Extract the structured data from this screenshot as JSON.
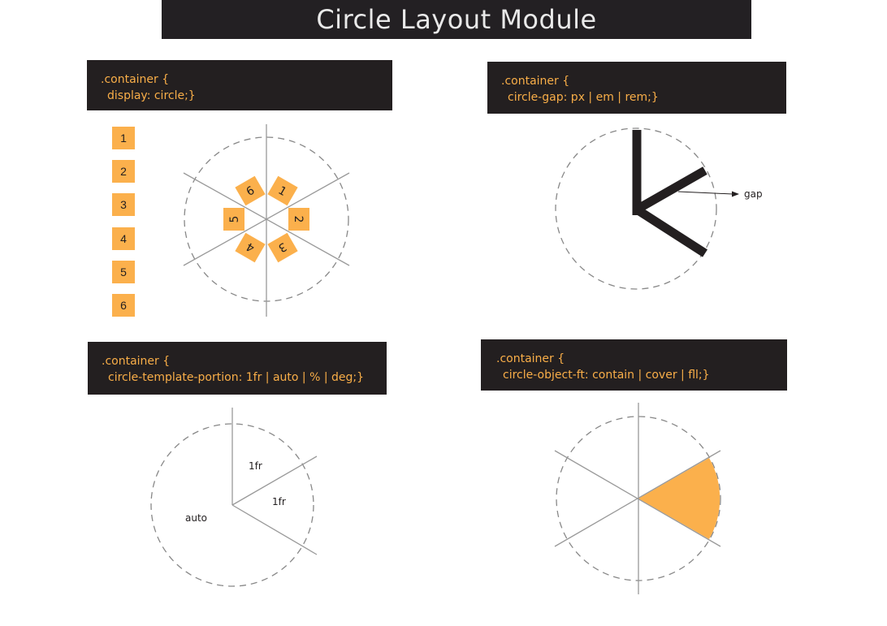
{
  "title": "Circle Layout Module",
  "colors": {
    "accent": "#fbb04c",
    "dark": "#231f20",
    "title_bg": "#232023",
    "code_text": "#f9ae48"
  },
  "panels": [
    {
      "line1": ".container {",
      "line2": "display: circle;}"
    },
    {
      "line1": ".container {",
      "line2": "circle-gap: px | em | rem;}"
    },
    {
      "line1": ".container {",
      "line2": "circle-template-portion: 1fr | auto | % | deg;}"
    },
    {
      "line1": ".container {",
      "line2": "circle-object-ft: contain | cover | fll;}"
    }
  ],
  "items": [
    "1",
    "2",
    "3",
    "4",
    "5",
    "6"
  ],
  "gap_label": "gap",
  "portions": {
    "a": "1fr",
    "b": "1fr",
    "c": "auto"
  }
}
